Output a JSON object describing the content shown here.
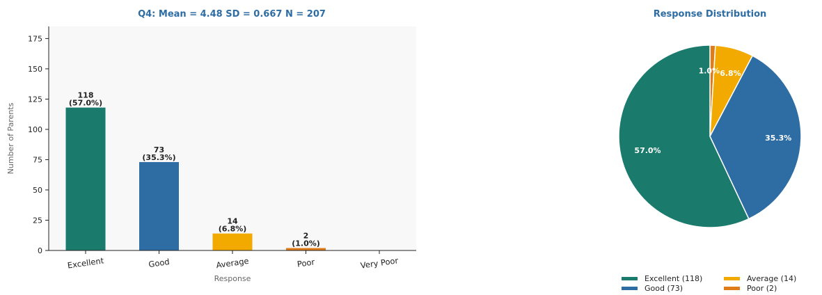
{
  "colors": {
    "title": "#2e6da4",
    "plot_bg": "#f8f8f8",
    "excellent": "#1a7a6c",
    "good": "#2e6da4",
    "average": "#f2a900",
    "poor": "#e07b1a",
    "very_poor": "#c0392b"
  },
  "chart_data": [
    {
      "type": "bar",
      "title": "Q4: Mean = 4.48   SD = 0.667   N = 207",
      "xlabel": "Response",
      "ylabel": "Number of Parents",
      "categories": [
        "Excellent",
        "Good",
        "Average",
        "Poor",
        "Very Poor"
      ],
      "values": [
        118,
        73,
        14,
        2,
        0
      ],
      "value_labels": [
        "118",
        "73",
        "14",
        "2",
        ""
      ],
      "pct_labels": [
        "(57.0%)",
        "(35.3%)",
        "(6.8%)",
        "(1.0%)",
        ""
      ],
      "ylim": [
        0,
        185
      ],
      "yticks": [
        0,
        25,
        50,
        75,
        100,
        125,
        150,
        175
      ],
      "grid": false
    },
    {
      "type": "pie",
      "title": "Response Distribution",
      "slices": [
        {
          "label": "Excellent",
          "value": 118,
          "pct_label": "57.0%"
        },
        {
          "label": "Good",
          "value": 73,
          "pct_label": "35.3%"
        },
        {
          "label": "Average",
          "value": 14,
          "pct_label": "6.8%"
        },
        {
          "label": "Poor",
          "value": 2,
          "pct_label": "1.0%"
        }
      ],
      "legend": [
        "Excellent (118)",
        "Good (73)",
        "Average (14)",
        "Poor (2)"
      ],
      "legend_position": "bottom"
    }
  ]
}
